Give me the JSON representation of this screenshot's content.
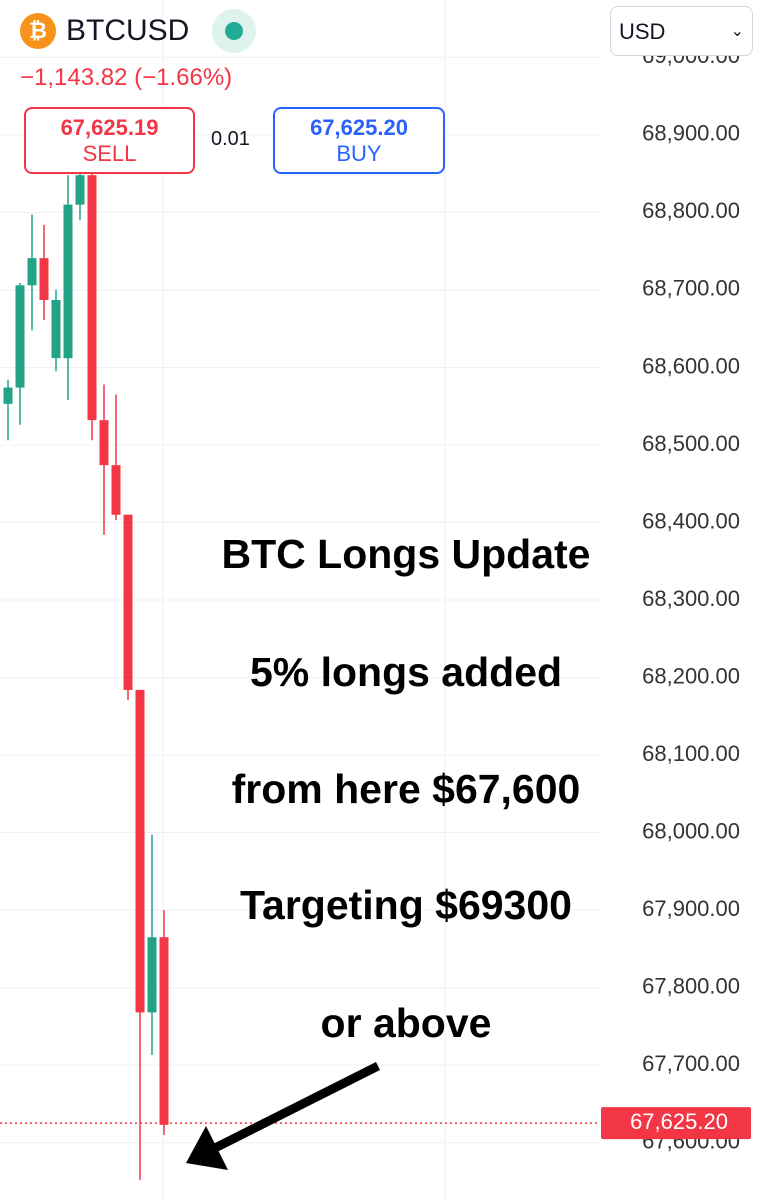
{
  "header": {
    "icon_symbol": "₿",
    "symbol": "BTCUSD",
    "change": "−1,143.82 (−1.66%)",
    "sell_price": "67,625.19",
    "sell_label": "SELL",
    "spread": "0.01",
    "buy_price": "67,625.20",
    "buy_label": "BUY",
    "currency": "USD"
  },
  "chart_data": {
    "type": "candlestick",
    "up_color": "#22a386",
    "down_color": "#f23645",
    "open": [
      68553,
      68574,
      68706,
      68741,
      68612,
      68612,
      68810,
      68848,
      68532,
      68474,
      68410,
      68184,
      67768,
      67865
    ],
    "high": [
      68584,
      68709,
      68797,
      68784,
      68700,
      68848,
      68881,
      68881,
      68578,
      68565,
      68410,
      68184,
      67997,
      67900
    ],
    "low": [
      68506,
      68526,
      68648,
      68661,
      68595,
      68558,
      68790,
      68506,
      68384,
      68403,
      68171,
      67552,
      67713,
      67610
    ],
    "close": [
      68574,
      68706,
      68741,
      68687,
      68687,
      68810,
      68848,
      68532,
      68474,
      68410,
      68184,
      67768,
      67865,
      67623
    ],
    "ylim": [
      67526,
      69074
    ],
    "yticks": [
      {
        "value": 67600,
        "label": "67,600.00"
      },
      {
        "value": 67700,
        "label": "67,700.00"
      },
      {
        "value": 67800,
        "label": "67,800.00"
      },
      {
        "value": 67900,
        "label": "67,900.00"
      },
      {
        "value": 68000,
        "label": "68,000.00"
      },
      {
        "value": 68100,
        "label": "68,100.00"
      },
      {
        "value": 68200,
        "label": "68,200.00"
      },
      {
        "value": 68300,
        "label": "68,300.00"
      },
      {
        "value": 68400,
        "label": "68,400.00"
      },
      {
        "value": 68500,
        "label": "68,500.00"
      },
      {
        "value": 68600,
        "label": "68,600.00"
      },
      {
        "value": 68700,
        "label": "68,700.00"
      },
      {
        "value": 68800,
        "label": "68,800.00"
      },
      {
        "value": 68900,
        "label": "68,900.00"
      },
      {
        "value": 69000,
        "label": "69,000.00"
      }
    ],
    "grid": true,
    "last_price": {
      "value": 67625.2,
      "label": "67,625.20"
    },
    "annotations": [
      "BTC Longs Update",
      "5% longs added",
      "from here $67,600",
      "Targeting $69300",
      "or above"
    ]
  }
}
